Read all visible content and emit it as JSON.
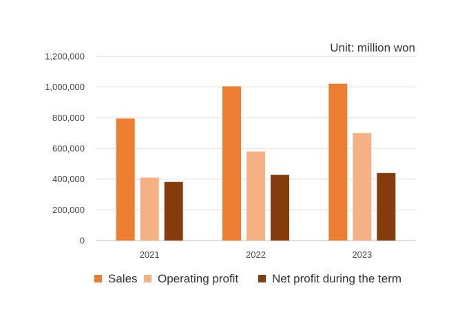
{
  "chart_data": {
    "type": "bar",
    "unit_label": "Unit: million won",
    "categories": [
      "2021",
      "2022",
      "2023"
    ],
    "series": [
      {
        "name": "Sales",
        "color": "#ED7D31",
        "values": [
          795000,
          1005000,
          1022000
        ]
      },
      {
        "name": "Operating profit",
        "color": "#F4B183",
        "values": [
          410000,
          580000,
          700000
        ]
      },
      {
        "name": "Net profit during the term",
        "color": "#843C0C",
        "values": [
          382000,
          428000,
          440000
        ]
      }
    ],
    "ylim": [
      0,
      1200000
    ],
    "yticks": [
      "0",
      "200,000",
      "400,000",
      "600,000",
      "800,000",
      "1,000,000",
      "1,200,000"
    ],
    "grid": true,
    "legend_position": "bottom"
  }
}
